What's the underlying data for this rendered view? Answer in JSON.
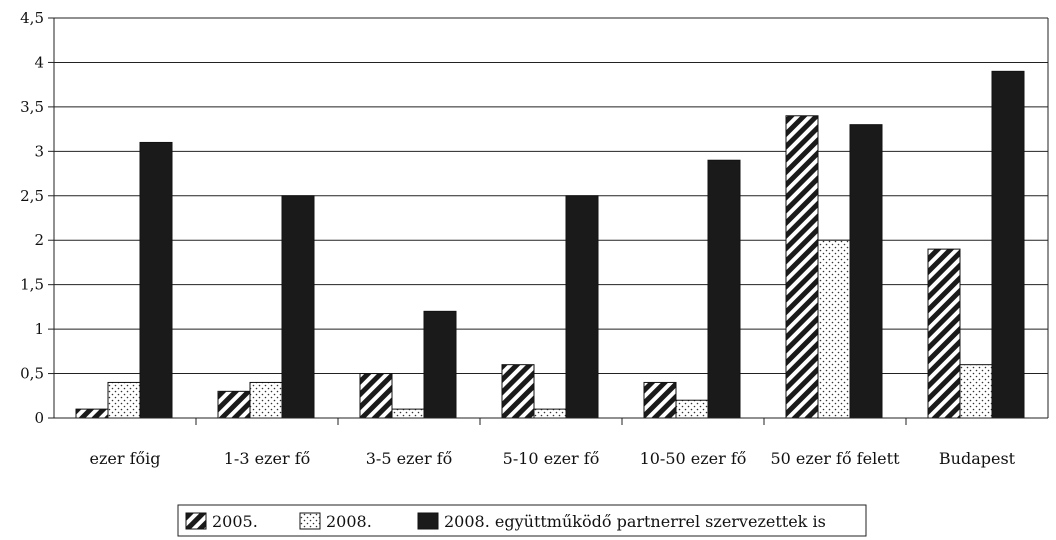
{
  "chart_data": {
    "type": "bar",
    "title": "",
    "xlabel": "",
    "ylabel": "",
    "ylim": [
      0,
      4.5
    ],
    "yticks": [
      "0",
      "0,5",
      "1",
      "1,5",
      "2",
      "2,5",
      "3",
      "3,5",
      "4",
      "4,5"
    ],
    "grid": true,
    "legend_position": "bottom",
    "categories": [
      "ezer főig",
      "1-3 ezer fő",
      "3-5 ezer fő",
      "5-10 ezer fő",
      "10-50 ezer fő",
      "50 ezer fő felett",
      "Budapest"
    ],
    "series": [
      {
        "name": "2005.",
        "pattern": "diagonal-hatch",
        "values": [
          0.1,
          0.3,
          0.5,
          0.6,
          0.4,
          3.4,
          1.9
        ]
      },
      {
        "name": "2008.",
        "pattern": "dotted",
        "values": [
          0.4,
          0.4,
          0.1,
          0.1,
          0.2,
          2.0,
          0.6
        ]
      },
      {
        "name": "2008. együttműködő partnerrel szervezettek is",
        "pattern": "solid",
        "color": "#1a1a1a",
        "values": [
          3.1,
          2.5,
          1.2,
          2.5,
          2.9,
          3.3,
          3.9
        ]
      }
    ]
  }
}
